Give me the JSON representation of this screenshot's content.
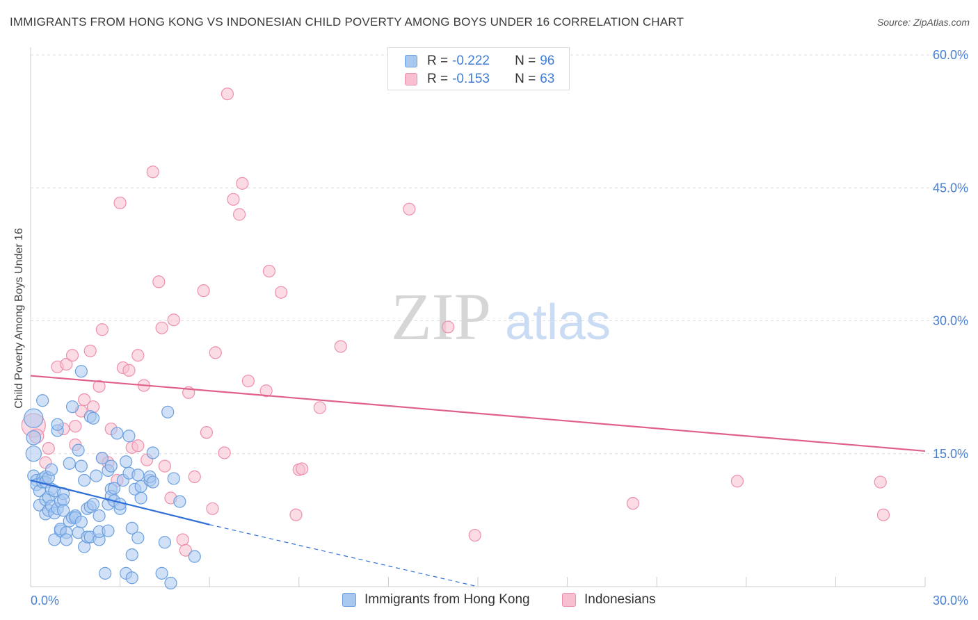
{
  "title": "IMMIGRANTS FROM HONG KONG VS INDONESIAN CHILD POVERTY AMONG BOYS UNDER 16 CORRELATION CHART",
  "source": "Source: ZipAtlas.com",
  "watermark": {
    "zip": "ZIP",
    "atlas": "atlas"
  },
  "legend": {
    "r_label": "R =",
    "n_label": "N =",
    "series": [
      {
        "name": "Immigrants from Hong Kong",
        "r": "-0.222",
        "n": "96",
        "fill": "#a9c8f0",
        "stroke": "#6a9fe0"
      },
      {
        "name": "Indonesians",
        "r": "-0.153",
        "n": "63",
        "fill": "#f7bfcf",
        "stroke": "#ee8fab"
      }
    ]
  },
  "colors": {
    "blue_line": "#2f6fd6",
    "pink_line": "#e0608a",
    "tick_text": "#4a7fd0",
    "grid": "#dcdcdc"
  },
  "chart_data": {
    "type": "scatter",
    "title": "IMMIGRANTS FROM HONG KONG VS INDONESIAN CHILD POVERTY AMONG BOYS UNDER 16 CORRELATION CHART",
    "xlabel": "",
    "ylabel": "Child Poverty Among Boys Under 16",
    "xlim": [
      0,
      30
    ],
    "ylim": [
      0,
      60
    ],
    "x_tick_labels": [
      {
        "value": 0,
        "label": "0.0%"
      },
      {
        "value": 30,
        "label": "30.0%"
      }
    ],
    "y_tick_labels": [
      {
        "value": 15,
        "label": "15.0%"
      },
      {
        "value": 30,
        "label": "30.0%"
      },
      {
        "value": 45,
        "label": "45.0%"
      },
      {
        "value": 60,
        "label": "60.0%"
      }
    ],
    "legend_position": "top-center",
    "series": [
      {
        "name": "Immigrants from Hong Kong",
        "trend": {
          "x_start": 0,
          "y_start": 12.0,
          "x_end": 6.0,
          "y_end": 7.0,
          "dashed_to_x": 15.0,
          "dashed_to_y": 0
        },
        "points": [
          [
            0.1,
            19.0,
            1.6
          ],
          [
            0.1,
            16.8,
            1.2
          ],
          [
            0.1,
            15.0,
            1.3
          ],
          [
            0.1,
            12.5,
            1.0
          ],
          [
            0.2,
            12.0,
            1.0
          ],
          [
            0.2,
            11.5,
            1.0
          ],
          [
            0.3,
            10.8,
            1.0
          ],
          [
            0.3,
            9.2,
            1.0
          ],
          [
            0.4,
            12.2,
            1.0
          ],
          [
            0.4,
            11.8,
            1.0
          ],
          [
            0.4,
            21.0,
            1.0
          ],
          [
            0.5,
            12.4,
            1.0
          ],
          [
            0.5,
            11.8,
            1.0
          ],
          [
            0.5,
            9.8,
            1.0
          ],
          [
            0.5,
            8.2,
            1.0
          ],
          [
            0.6,
            10.1,
            1.0
          ],
          [
            0.6,
            8.6,
            1.0
          ],
          [
            0.6,
            12.3,
            1.0
          ],
          [
            0.7,
            11.0,
            1.0
          ],
          [
            0.7,
            13.2,
            1.0
          ],
          [
            0.7,
            9.1,
            1.0
          ],
          [
            0.8,
            5.3,
            1.0
          ],
          [
            0.8,
            10.8,
            1.0
          ],
          [
            0.8,
            8.3,
            1.0
          ],
          [
            0.9,
            17.6,
            1.0
          ],
          [
            0.9,
            18.3,
            1.0
          ],
          [
            0.9,
            8.8,
            1.0
          ],
          [
            1.0,
            6.3,
            1.0
          ],
          [
            1.0,
            9.6,
            1.0
          ],
          [
            1.0,
            6.5,
            1.0
          ],
          [
            1.1,
            10.5,
            1.0
          ],
          [
            1.1,
            9.8,
            1.0
          ],
          [
            1.1,
            8.6,
            1.0
          ],
          [
            1.2,
            6.1,
            1.0
          ],
          [
            1.2,
            5.3,
            1.0
          ],
          [
            1.3,
            7.4,
            1.0
          ],
          [
            1.3,
            13.9,
            1.0
          ],
          [
            1.4,
            20.3,
            1.0
          ],
          [
            1.4,
            7.8,
            1.0
          ],
          [
            1.5,
            8.0,
            1.0
          ],
          [
            1.5,
            7.8,
            1.0
          ],
          [
            1.6,
            15.4,
            1.0
          ],
          [
            1.6,
            6.1,
            1.0
          ],
          [
            1.7,
            24.3,
            1.0
          ],
          [
            1.7,
            13.6,
            1.0
          ],
          [
            1.7,
            7.3,
            1.0
          ],
          [
            1.8,
            12.0,
            1.0
          ],
          [
            1.8,
            4.5,
            1.0
          ],
          [
            1.9,
            5.6,
            1.0
          ],
          [
            1.9,
            8.8,
            1.0
          ],
          [
            2.0,
            5.6,
            1.0
          ],
          [
            2.0,
            9.0,
            1.0
          ],
          [
            2.0,
            19.2,
            1.0
          ],
          [
            2.1,
            19.0,
            1.0
          ],
          [
            2.1,
            9.3,
            1.0
          ],
          [
            2.2,
            12.5,
            1.0
          ],
          [
            2.3,
            5.3,
            1.0
          ],
          [
            2.3,
            6.2,
            1.0
          ],
          [
            2.3,
            8.0,
            1.0
          ],
          [
            2.4,
            14.5,
            1.0
          ],
          [
            2.5,
            1.5,
            1.0
          ],
          [
            2.6,
            9.3,
            1.0
          ],
          [
            2.6,
            13.1,
            1.0
          ],
          [
            2.6,
            6.3,
            1.0
          ],
          [
            2.7,
            11.0,
            1.0
          ],
          [
            2.7,
            10.2,
            1.0
          ],
          [
            2.7,
            13.6,
            1.0
          ],
          [
            2.8,
            11.1,
            1.0
          ],
          [
            2.8,
            9.7,
            1.0
          ],
          [
            2.9,
            17.3,
            1.0
          ],
          [
            3.0,
            8.8,
            1.0
          ],
          [
            3.0,
            9.3,
            1.0
          ],
          [
            3.1,
            12.0,
            1.0
          ],
          [
            3.2,
            14.1,
            1.0
          ],
          [
            3.2,
            1.5,
            1.0
          ],
          [
            3.3,
            17.0,
            1.0
          ],
          [
            3.3,
            12.8,
            1.0
          ],
          [
            3.4,
            6.6,
            1.0
          ],
          [
            3.4,
            3.6,
            1.0
          ],
          [
            3.4,
            1.0,
            1.0
          ],
          [
            3.5,
            11.0,
            1.0
          ],
          [
            3.6,
            12.6,
            1.0
          ],
          [
            3.6,
            5.5,
            1.0
          ],
          [
            3.7,
            10.0,
            1.0
          ],
          [
            3.7,
            11.3,
            1.0
          ],
          [
            4.0,
            12.0,
            1.0
          ],
          [
            4.0,
            12.4,
            1.0
          ],
          [
            4.1,
            11.8,
            1.0
          ],
          [
            4.1,
            15.1,
            1.0
          ],
          [
            4.4,
            1.5,
            1.0
          ],
          [
            4.5,
            5.0,
            1.0
          ],
          [
            4.6,
            19.7,
            1.0
          ],
          [
            4.7,
            0.4,
            1.0
          ],
          [
            5.0,
            9.6,
            1.0
          ],
          [
            5.5,
            3.4,
            1.0
          ],
          [
            4.8,
            12.2,
            1.0
          ]
        ]
      },
      {
        "name": "Indonesians",
        "trend": {
          "x_start": 0,
          "y_start": 23.8,
          "x_end": 30.0,
          "y_end": 15.3
        },
        "points": [
          [
            0.1,
            18.2,
            2.0
          ],
          [
            0.2,
            17.0,
            1.2
          ],
          [
            0.5,
            14.0,
            1.0
          ],
          [
            0.6,
            15.6,
            1.0
          ],
          [
            0.9,
            24.8,
            1.0
          ],
          [
            1.1,
            17.8,
            1.0
          ],
          [
            1.2,
            25.1,
            1.0
          ],
          [
            1.4,
            26.1,
            1.0
          ],
          [
            1.5,
            18.1,
            1.0
          ],
          [
            1.5,
            16.0,
            1.0
          ],
          [
            1.7,
            19.8,
            1.0
          ],
          [
            1.8,
            21.1,
            1.0
          ],
          [
            2.0,
            26.6,
            1.0
          ],
          [
            2.1,
            20.3,
            1.0
          ],
          [
            2.3,
            22.6,
            1.0
          ],
          [
            2.4,
            14.5,
            1.0
          ],
          [
            2.4,
            29.0,
            1.0
          ],
          [
            2.6,
            14.0,
            1.0
          ],
          [
            2.7,
            17.8,
            1.0
          ],
          [
            2.9,
            12.0,
            1.0
          ],
          [
            3.0,
            43.3,
            1.0
          ],
          [
            3.1,
            24.7,
            1.0
          ],
          [
            3.3,
            24.4,
            1.0
          ],
          [
            3.4,
            15.7,
            1.0
          ],
          [
            3.6,
            15.9,
            1.0
          ],
          [
            3.6,
            26.1,
            1.0
          ],
          [
            3.8,
            22.7,
            1.0
          ],
          [
            3.9,
            14.3,
            1.0
          ],
          [
            4.1,
            46.8,
            1.0
          ],
          [
            4.3,
            34.4,
            1.0
          ],
          [
            4.4,
            29.2,
            1.0
          ],
          [
            4.5,
            13.6,
            1.0
          ],
          [
            4.7,
            10.0,
            1.0
          ],
          [
            4.8,
            30.1,
            1.0
          ],
          [
            5.1,
            5.3,
            1.0
          ],
          [
            5.2,
            4.1,
            1.0
          ],
          [
            5.3,
            21.9,
            1.0
          ],
          [
            5.5,
            12.4,
            1.0
          ],
          [
            5.8,
            33.4,
            1.0
          ],
          [
            5.9,
            17.4,
            1.0
          ],
          [
            6.1,
            8.8,
            1.0
          ],
          [
            6.2,
            26.4,
            1.0
          ],
          [
            6.5,
            15.1,
            1.0
          ],
          [
            6.6,
            55.6,
            1.0
          ],
          [
            6.8,
            43.7,
            1.0
          ],
          [
            7.0,
            42.0,
            1.0
          ],
          [
            7.1,
            45.5,
            1.0
          ],
          [
            7.3,
            23.2,
            1.0
          ],
          [
            7.9,
            22.1,
            1.0
          ],
          [
            8.0,
            35.6,
            1.0
          ],
          [
            8.4,
            33.2,
            1.0
          ],
          [
            8.9,
            8.1,
            1.0
          ],
          [
            9.0,
            13.2,
            1.0
          ],
          [
            9.1,
            13.3,
            1.0
          ],
          [
            9.7,
            20.2,
            1.0
          ],
          [
            10.4,
            27.1,
            1.0
          ],
          [
            12.7,
            42.6,
            1.0
          ],
          [
            14.0,
            29.3,
            1.0
          ],
          [
            14.9,
            5.8,
            1.0
          ],
          [
            20.2,
            9.4,
            1.0
          ],
          [
            23.7,
            11.9,
            1.0
          ],
          [
            28.5,
            11.8,
            1.0
          ],
          [
            28.6,
            8.1,
            1.0
          ]
        ]
      }
    ]
  }
}
